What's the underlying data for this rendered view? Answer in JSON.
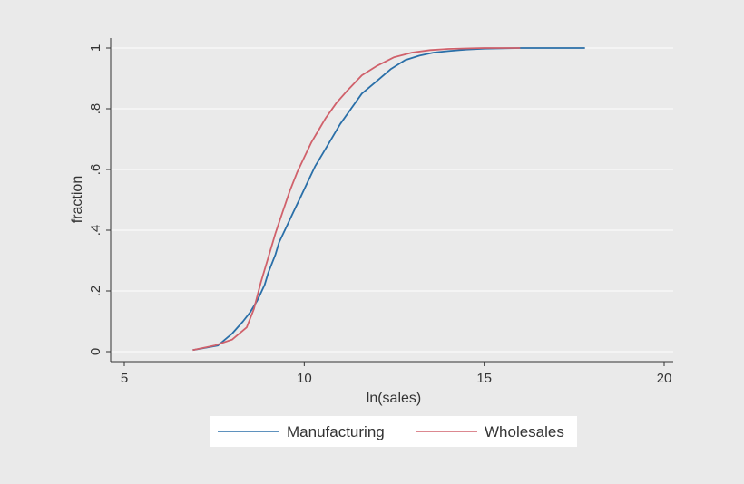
{
  "chart_data": {
    "type": "line",
    "title": "",
    "xlabel": "ln(sales)",
    "ylabel": "fraction",
    "xlim": [
      5,
      20
    ],
    "ylim": [
      0,
      1
    ],
    "x_ticks": [
      5,
      10,
      15,
      20
    ],
    "x_tick_labels": [
      "5",
      "10",
      "15",
      "20"
    ],
    "y_ticks": [
      0,
      0.2,
      0.4,
      0.6,
      0.8,
      1
    ],
    "y_tick_labels": [
      "0",
      ".2",
      ".4",
      ".6",
      ".8",
      "1"
    ],
    "grid": true,
    "legend_position": "bottom",
    "series": [
      {
        "name": "Manufacturing",
        "color": "#2a6fa8",
        "x": [
          6.9,
          7.6,
          8.0,
          8.3,
          8.5,
          8.7,
          8.9,
          9.0,
          9.1,
          9.2,
          9.3,
          9.5,
          9.7,
          9.9,
          10.1,
          10.3,
          10.5,
          10.8,
          11.0,
          11.3,
          11.6,
          12.0,
          12.4,
          12.8,
          13.2,
          13.6,
          14.0,
          14.5,
          15.0,
          16.0,
          17.0,
          17.8
        ],
        "y": [
          0.005,
          0.02,
          0.06,
          0.1,
          0.13,
          0.17,
          0.22,
          0.26,
          0.29,
          0.32,
          0.36,
          0.41,
          0.46,
          0.51,
          0.56,
          0.61,
          0.65,
          0.71,
          0.75,
          0.8,
          0.85,
          0.89,
          0.93,
          0.96,
          0.975,
          0.985,
          0.99,
          0.995,
          0.998,
          1.0,
          1.0,
          1.0
        ]
      },
      {
        "name": "Wholesales",
        "color": "#d0616b",
        "x": [
          6.9,
          7.5,
          8.0,
          8.4,
          8.6,
          8.8,
          9.0,
          9.2,
          9.4,
          9.6,
          9.8,
          10.0,
          10.2,
          10.4,
          10.6,
          10.9,
          11.2,
          11.6,
          12.0,
          12.5,
          13.0,
          13.5,
          14.0,
          15.0,
          16.0
        ],
        "y": [
          0.005,
          0.02,
          0.04,
          0.08,
          0.14,
          0.23,
          0.31,
          0.39,
          0.46,
          0.53,
          0.59,
          0.64,
          0.69,
          0.73,
          0.77,
          0.82,
          0.86,
          0.91,
          0.94,
          0.97,
          0.985,
          0.993,
          0.997,
          1.0,
          1.0
        ]
      }
    ]
  }
}
